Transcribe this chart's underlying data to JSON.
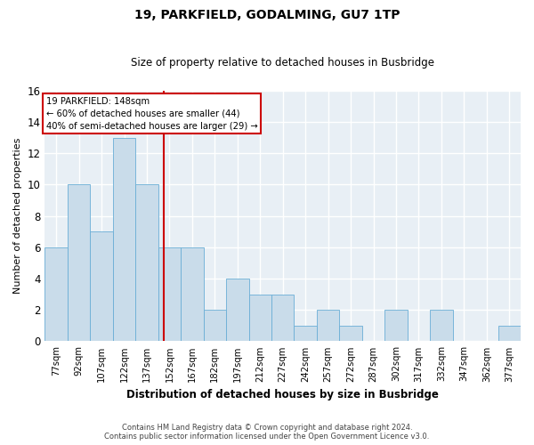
{
  "title": "19, PARKFIELD, GODALMING, GU7 1TP",
  "subtitle": "Size of property relative to detached houses in Busbridge",
  "xlabel": "Distribution of detached houses by size in Busbridge",
  "ylabel": "Number of detached properties",
  "categories": [
    "77sqm",
    "92sqm",
    "107sqm",
    "122sqm",
    "137sqm",
    "152sqm",
    "167sqm",
    "182sqm",
    "197sqm",
    "212sqm",
    "227sqm",
    "242sqm",
    "257sqm",
    "272sqm",
    "287sqm",
    "302sqm",
    "317sqm",
    "332sqm",
    "347sqm",
    "362sqm",
    "377sqm"
  ],
  "values": [
    6,
    10,
    7,
    13,
    10,
    6,
    6,
    2,
    4,
    3,
    3,
    1,
    2,
    1,
    0,
    2,
    0,
    2,
    0,
    0,
    1
  ],
  "bar_color": "#c9dcea",
  "bar_edgecolor": "#6aaed6",
  "property_label": "19 PARKFIELD: 148sqm",
  "annotation_line1": "← 60% of detached houses are smaller (44)",
  "annotation_line2": "40% of semi-detached houses are larger (29) →",
  "vline_color": "#cc0000",
  "annotation_box_edgecolor": "#cc0000",
  "background_color": "#e8eff5",
  "grid_color": "#ffffff",
  "ylim": [
    0,
    16
  ],
  "yticks": [
    0,
    2,
    4,
    6,
    8,
    10,
    12,
    14,
    16
  ],
  "footer_line1": "Contains HM Land Registry data © Crown copyright and database right 2024.",
  "footer_line2": "Contains public sector information licensed under the Open Government Licence v3.0."
}
